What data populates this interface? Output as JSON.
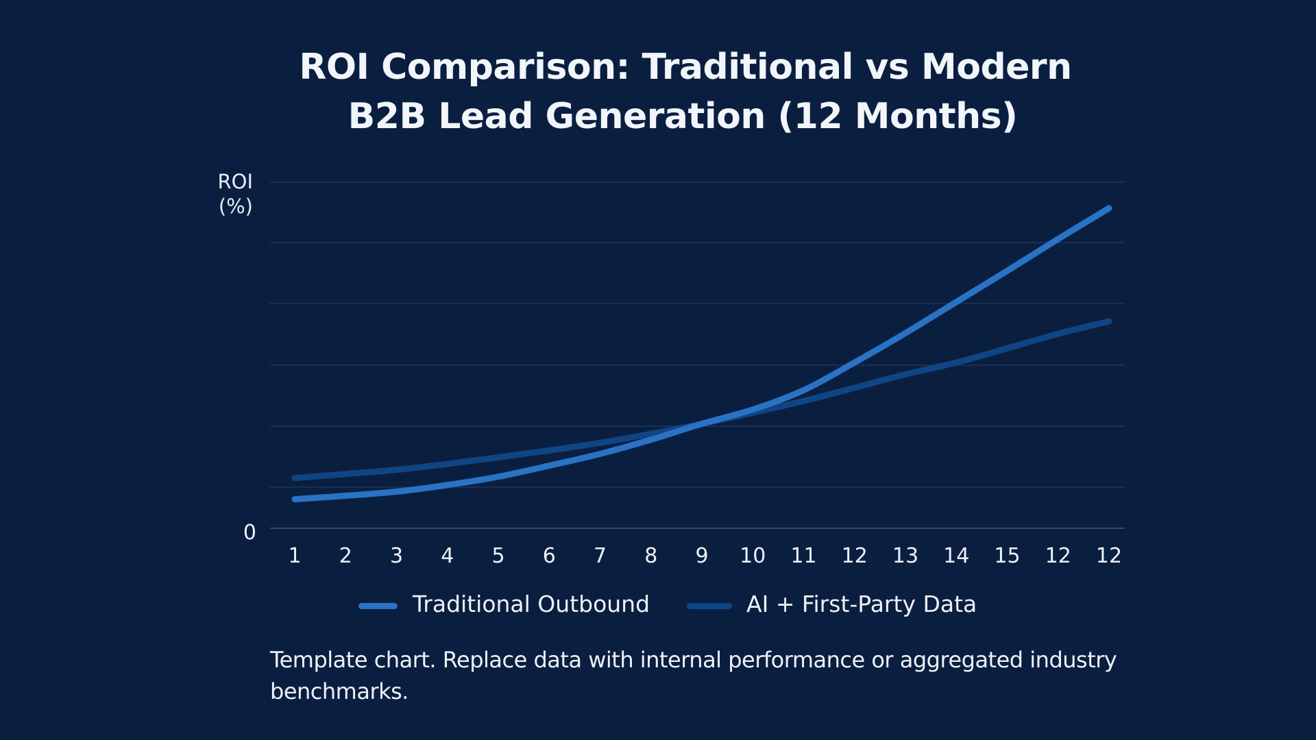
{
  "chart_data": {
    "type": "line",
    "title": "ROI Comparison: Traditional vs Modern",
    "title_line2": "B2B Lead Generation (12 Months)",
    "ylabel": "ROI",
    "ylabel_unit": "(%)",
    "y_tick_labels": [
      "0"
    ],
    "ylim": [
      0,
      100
    ],
    "grid": true,
    "x_tick_labels": [
      "1",
      "2",
      "3",
      "4",
      "5",
      "6",
      "7",
      "8",
      "9",
      "10",
      "11",
      "12",
      "13",
      "14",
      "15",
      "12",
      "12"
    ],
    "series": [
      {
        "name": "Traditional Outbound",
        "color": "#2a72c4",
        "values": [
          8.4,
          9.4,
          10.6,
          12.5,
          14.9,
          18.1,
          21.5,
          25.6,
          30.2,
          34.3,
          39.9,
          47.9,
          56.4,
          65.4,
          74.4,
          83.6,
          92.5
        ]
      },
      {
        "name": "AI + First-Party Data",
        "color": "#0f4584",
        "values": [
          14.5,
          15.7,
          16.9,
          18.6,
          20.5,
          22.5,
          24.7,
          27.3,
          30.2,
          33.4,
          36.8,
          40.6,
          44.5,
          47.9,
          52.0,
          56.2,
          59.8
        ]
      }
    ],
    "legend_position": "bottom",
    "footnote": "Template chart. Replace data with internal performance or aggregated  industry benchmarks."
  },
  "colors": {
    "background": "#0a1f40",
    "grid": "#1f3558",
    "text": "#f2f5fa"
  }
}
